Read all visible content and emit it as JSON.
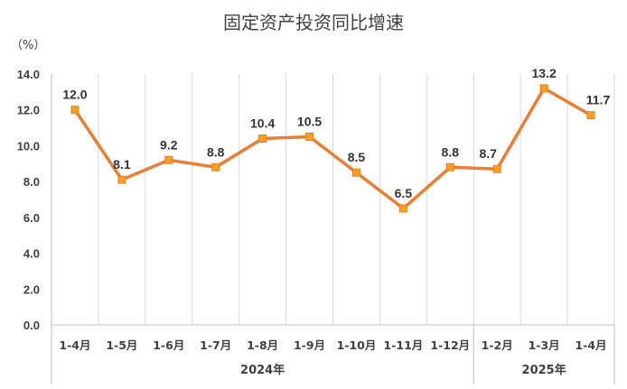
{
  "chart_data": {
    "type": "line",
    "title": "固定资产投资同比增速",
    "ylabel": "（%）",
    "xlabel": "",
    "ylim": [
      0,
      14
    ],
    "yticks": [
      "0.0",
      "2.0",
      "4.0",
      "6.0",
      "8.0",
      "10.0",
      "12.0",
      "14.0"
    ],
    "grid": "vertical",
    "categories": [
      "1-4月",
      "1-5月",
      "1-6月",
      "1-7月",
      "1-8月",
      "1-9月",
      "1-10月",
      "1-11月",
      "1-12月",
      "1-2月",
      "1-3月",
      "1-4月"
    ],
    "groups": [
      {
        "label": "2024年",
        "count": 9
      },
      {
        "label": "2025年",
        "count": 3
      }
    ],
    "series": [
      {
        "name": "固定资产投资同比增速",
        "values": [
          12.0,
          8.1,
          9.2,
          8.8,
          10.4,
          10.5,
          8.5,
          6.5,
          8.8,
          8.7,
          13.2,
          11.7
        ],
        "labels": [
          "12.0",
          "8.1",
          "9.2",
          "8.8",
          "10.4",
          "10.5",
          "8.5",
          "6.5",
          "8.8",
          "8.7",
          "13.2",
          "11.7"
        ],
        "color": "#ed7d31",
        "marker_color": "#f4a21a"
      }
    ]
  }
}
